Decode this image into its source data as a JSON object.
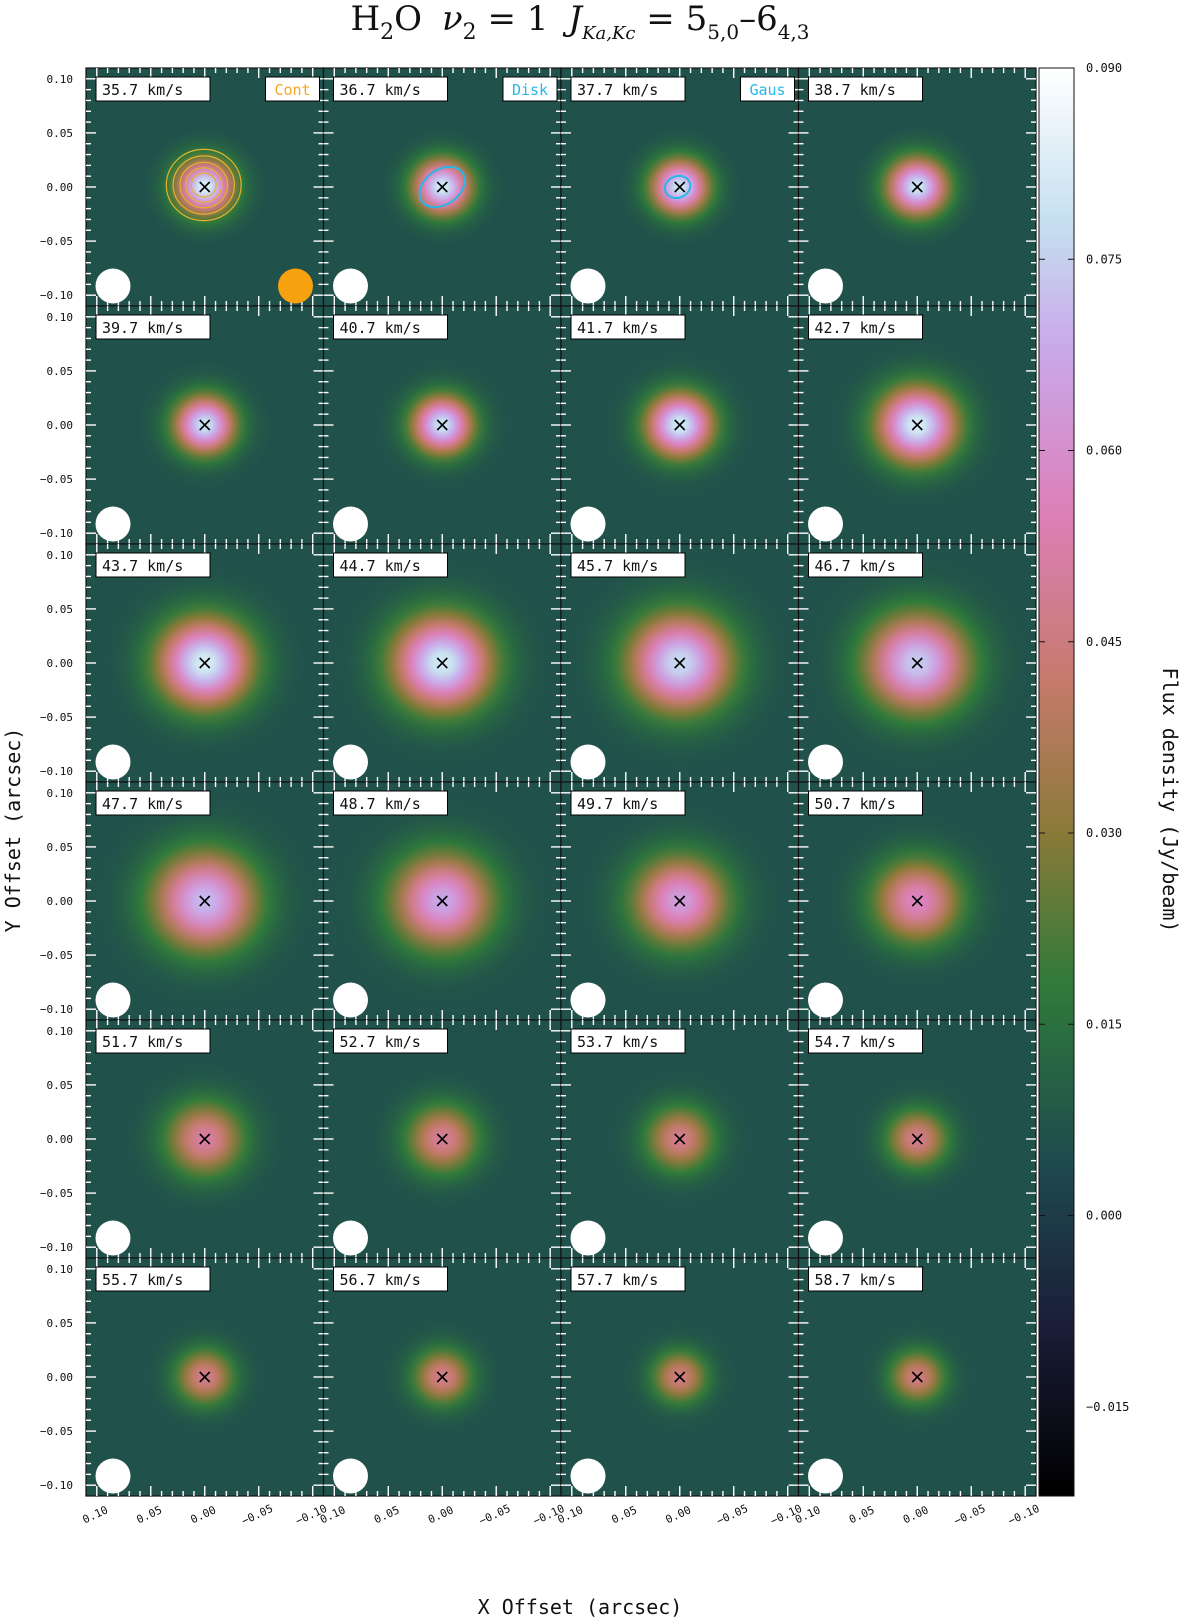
{
  "chart_data": {
    "type": "heatmap",
    "title": "H₂O  ν₂ = 1  J_{Ka,Kc} = 5₅,₀–6₄,₃",
    "title_parts": {
      "molecule": "H",
      "molecule_sub": "2",
      "molecule_end": "O",
      "nu": "ν",
      "nu_sub": "2",
      "nu_value": " = 1",
      "j": "J",
      "j_sub": "Ka,Kc",
      "upper": " = 5",
      "upper_sub": "5,0",
      "dash": "–",
      "lower": "6",
      "lower_sub": "4,3"
    },
    "xlabel": "X Offset (arcsec)",
    "ylabel": "Y Offset (arcsec)",
    "colorbar_label": "Flux density (Jy/beam)",
    "grid": {
      "rows": 6,
      "cols": 4
    },
    "xlim": [
      0.11,
      -0.11
    ],
    "ylim": [
      -0.11,
      0.11
    ],
    "x_ticks": [
      0.1,
      0.05,
      0.0,
      -0.05,
      -0.1
    ],
    "x_tick_labels": [
      "0.10",
      "0.05",
      "0.00",
      "−0.05",
      "−0.10"
    ],
    "y_ticks": [
      0.1,
      0.05,
      0.0,
      -0.05,
      -0.1
    ],
    "y_tick_labels": [
      "0.10",
      "0.05",
      "0.00",
      "−0.05",
      "−0.10"
    ],
    "colorbar": {
      "vmin": -0.022,
      "vmax": 0.09,
      "ticks": [
        0.09,
        0.075,
        0.06,
        0.045,
        0.03,
        0.015,
        0.0,
        -0.015
      ],
      "tick_labels": [
        "0.090",
        "0.075",
        "0.060",
        "0.045",
        "0.030",
        "0.015",
        "0.000",
        "−0.015"
      ],
      "stops": [
        {
          "v": -0.022,
          "color": "#000000"
        },
        {
          "v": -0.008,
          "color": "#1b1f3a"
        },
        {
          "v": 0.004,
          "color": "#1e4a4e"
        },
        {
          "v": 0.018,
          "color": "#2f7a3a"
        },
        {
          "v": 0.03,
          "color": "#8a7a38"
        },
        {
          "v": 0.042,
          "color": "#c67a6c"
        },
        {
          "v": 0.055,
          "color": "#dd7fb8"
        },
        {
          "v": 0.068,
          "color": "#c9a8ea"
        },
        {
          "v": 0.078,
          "color": "#c6e0f0"
        },
        {
          "v": 0.09,
          "color": "#ffffff"
        }
      ]
    },
    "background_flux": 0.006,
    "channels": [
      {
        "label": "35.7 km/s",
        "velocity": 35.7,
        "peak": 0.084,
        "size": 0.018,
        "extent": 0.022
      },
      {
        "label": "36.7 km/s",
        "velocity": 36.7,
        "peak": 0.082,
        "size": 0.018,
        "extent": 0.022
      },
      {
        "label": "37.7 km/s",
        "velocity": 37.7,
        "peak": 0.08,
        "size": 0.018,
        "extent": 0.022
      },
      {
        "label": "38.7 km/s",
        "velocity": 38.7,
        "peak": 0.08,
        "size": 0.019,
        "extent": 0.023
      },
      {
        "label": "39.7 km/s",
        "velocity": 39.7,
        "peak": 0.08,
        "size": 0.019,
        "extent": 0.024
      },
      {
        "label": "40.7 km/s",
        "velocity": 40.7,
        "peak": 0.08,
        "size": 0.019,
        "extent": 0.025
      },
      {
        "label": "41.7 km/s",
        "velocity": 41.7,
        "peak": 0.082,
        "size": 0.021,
        "extent": 0.028
      },
      {
        "label": "42.7 km/s",
        "velocity": 42.7,
        "peak": 0.083,
        "size": 0.025,
        "extent": 0.034
      },
      {
        "label": "43.7 km/s",
        "velocity": 43.7,
        "peak": 0.083,
        "size": 0.029,
        "extent": 0.039
      },
      {
        "label": "44.7 km/s",
        "velocity": 44.7,
        "peak": 0.082,
        "size": 0.031,
        "extent": 0.042
      },
      {
        "label": "45.7 km/s",
        "velocity": 45.7,
        "peak": 0.078,
        "size": 0.032,
        "extent": 0.043
      },
      {
        "label": "46.7 km/s",
        "velocity": 46.7,
        "peak": 0.075,
        "size": 0.032,
        "extent": 0.044
      },
      {
        "label": "47.7 km/s",
        "velocity": 47.7,
        "peak": 0.072,
        "size": 0.032,
        "extent": 0.043
      },
      {
        "label": "48.7 km/s",
        "velocity": 48.7,
        "peak": 0.068,
        "size": 0.031,
        "extent": 0.042
      },
      {
        "label": "49.7 km/s",
        "velocity": 49.7,
        "peak": 0.065,
        "size": 0.029,
        "extent": 0.04
      },
      {
        "label": "50.7 km/s",
        "velocity": 50.7,
        "peak": 0.058,
        "size": 0.027,
        "extent": 0.037
      },
      {
        "label": "51.7 km/s",
        "velocity": 51.7,
        "peak": 0.052,
        "size": 0.024,
        "extent": 0.034
      },
      {
        "label": "52.7 km/s",
        "velocity": 52.7,
        "peak": 0.05,
        "size": 0.022,
        "extent": 0.031
      },
      {
        "label": "53.7 km/s",
        "velocity": 53.7,
        "peak": 0.048,
        "size": 0.021,
        "extent": 0.029
      },
      {
        "label": "54.7 km/s",
        "velocity": 54.7,
        "peak": 0.048,
        "size": 0.019,
        "extent": 0.026
      },
      {
        "label": "55.7 km/s",
        "velocity": 55.7,
        "peak": 0.048,
        "size": 0.018,
        "extent": 0.024
      },
      {
        "label": "56.7 km/s",
        "velocity": 56.7,
        "peak": 0.048,
        "size": 0.018,
        "extent": 0.023
      },
      {
        "label": "57.7 km/s",
        "velocity": 57.7,
        "peak": 0.046,
        "size": 0.017,
        "extent": 0.022
      },
      {
        "label": "58.7 km/s",
        "velocity": 58.7,
        "peak": 0.046,
        "size": 0.017,
        "extent": 0.022
      }
    ],
    "continuum_position": [
      0.0,
      0.0
    ],
    "panel_tags": [
      {
        "panel": 0,
        "text": "Cont",
        "color": "#f5a623"
      },
      {
        "panel": 1,
        "text": "Disk",
        "color": "#29b6e8"
      },
      {
        "panel": 2,
        "text": "Gaus",
        "color": "#29b6e8"
      }
    ],
    "beam": {
      "major_arcsec": 0.027,
      "minor_arcsec": 0.027,
      "color": "#ffffff"
    },
    "continuum_beam": {
      "major_arcsec": 0.027,
      "minor_arcsec": 0.027,
      "color": "#f7a10f"
    },
    "continuum_contours": {
      "color": "#e6b030",
      "radii_arcsec": [
        0.033,
        0.027,
        0.021,
        0.016,
        0.011
      ]
    },
    "disk_model_ellipse": {
      "color": "#29b6e8",
      "semi_major_arcsec": 0.023,
      "semi_minor_arcsec": 0.016,
      "pa_deg": 35
    },
    "gauss_model_ellipse": {
      "color": "#29b6e8",
      "semi_major_arcsec": 0.012,
      "semi_minor_arcsec": 0.01,
      "pa_deg": 20
    }
  }
}
